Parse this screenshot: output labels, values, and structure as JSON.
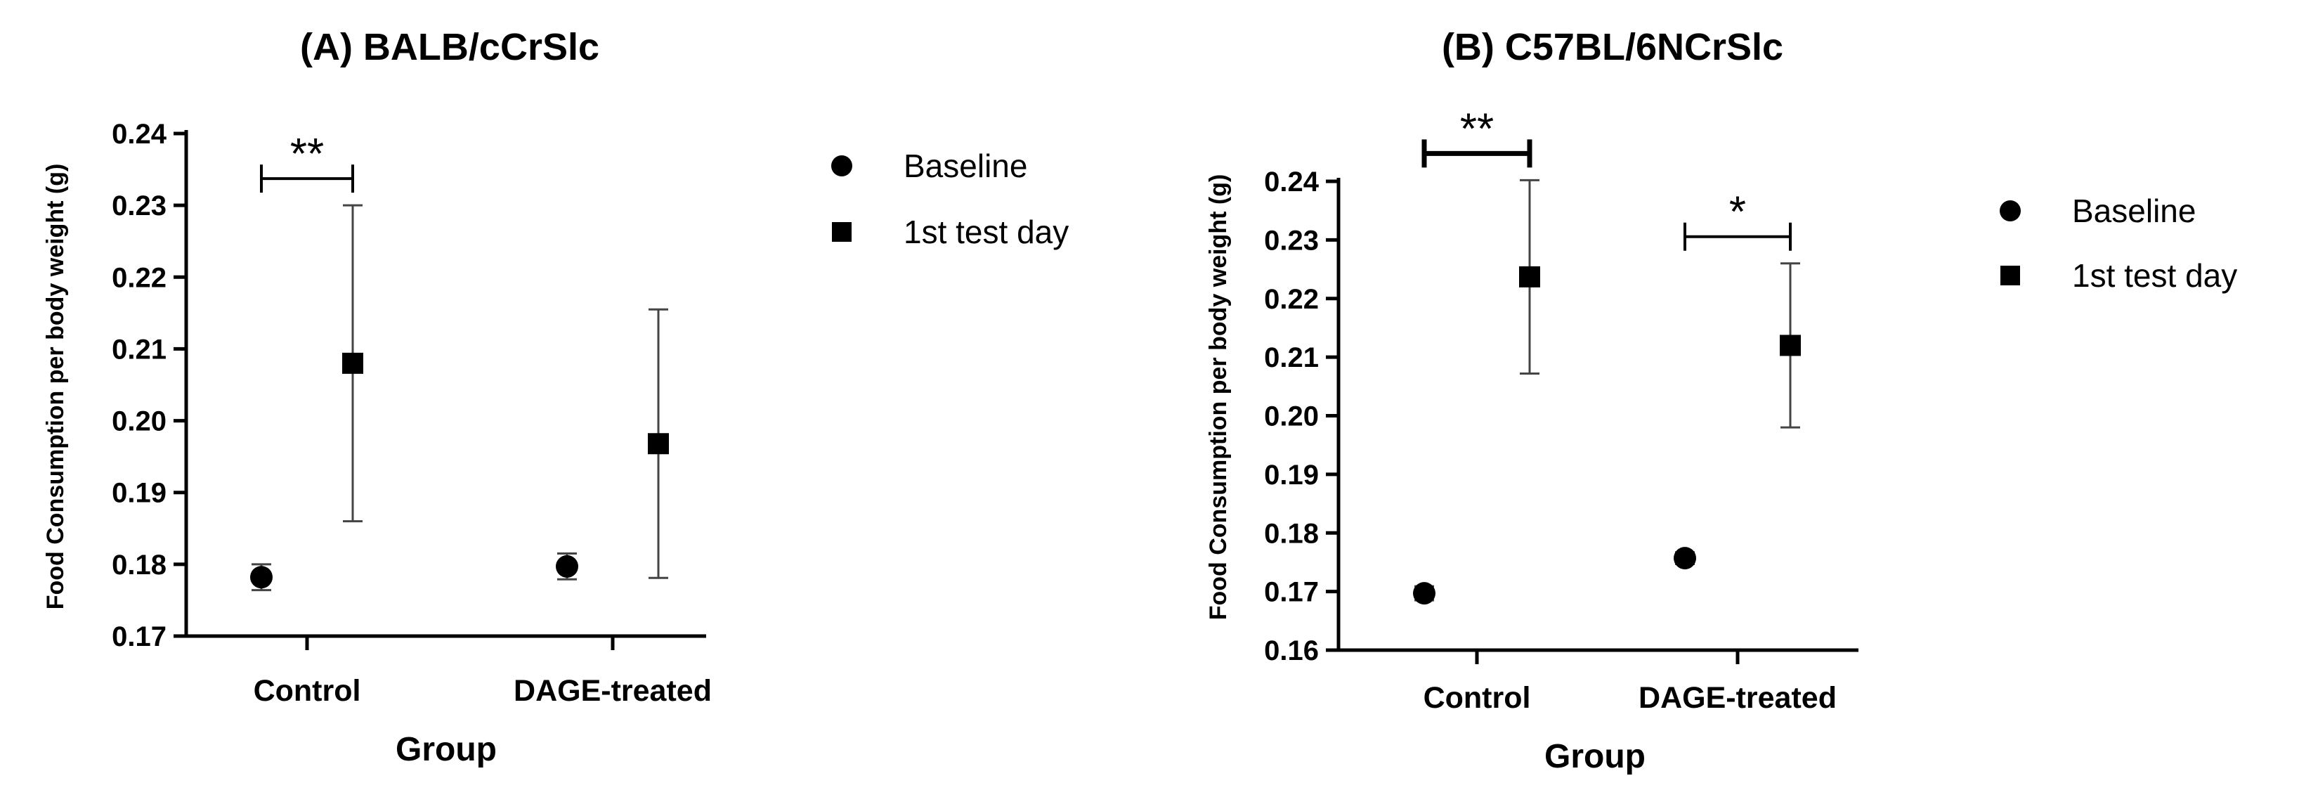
{
  "colors": {
    "marker": "#000000",
    "axis": "#000000",
    "errorbar": "#444444"
  },
  "chart_data": [
    {
      "type": "scatter",
      "title": "(A) BALB/cCrSlc",
      "xlabel": "Group",
      "ylabel": "Food Consumption per body weight (g)",
      "categories": [
        "Control",
        "DAGE-treated"
      ],
      "ylim": [
        0.17,
        0.24
      ],
      "yticks": [
        "0.17",
        "0.18",
        "0.19",
        "0.20",
        "0.21",
        "0.22",
        "0.23",
        "0.24"
      ],
      "series": [
        {
          "name": "Baseline",
          "marker": "circle",
          "values": [
            0.1782,
            0.1797
          ],
          "errors": [
            0.0018,
            0.0018
          ]
        },
        {
          "name": "1st test day",
          "marker": "square",
          "values": [
            0.208,
            0.1968
          ],
          "errors": [
            0.022,
            0.0187
          ]
        }
      ],
      "legend": [
        "Baseline",
        "1st test day"
      ],
      "significance": [
        {
          "category": "Control",
          "label": "**"
        }
      ]
    },
    {
      "type": "scatter",
      "title": "(B) C57BL/6NCrSlc",
      "xlabel": "Group",
      "ylabel": "Food Consumption per body weight (g)",
      "categories": [
        "Control",
        "DAGE-treated"
      ],
      "ylim": [
        0.16,
        0.24
      ],
      "yticks": [
        "0.16",
        "0.17",
        "0.18",
        "0.19",
        "0.20",
        "0.21",
        "0.22",
        "0.23",
        "0.24"
      ],
      "series": [
        {
          "name": "Baseline",
          "marker": "circle",
          "values": [
            0.1697,
            0.1757
          ],
          "errors": [
            0.0012,
            0.001
          ]
        },
        {
          "name": "1st test day",
          "marker": "square",
          "values": [
            0.2237,
            0.212
          ],
          "errors": [
            0.0165,
            0.014
          ]
        }
      ],
      "legend": [
        "Baseline",
        "1st test day"
      ],
      "significance": [
        {
          "category": "Control",
          "label": "**"
        },
        {
          "category": "DAGE-treated",
          "label": "*"
        }
      ]
    }
  ]
}
